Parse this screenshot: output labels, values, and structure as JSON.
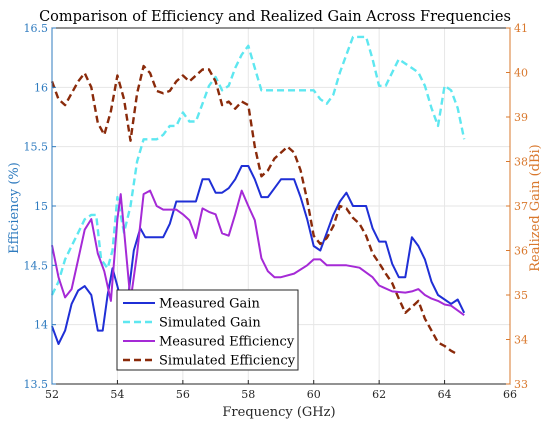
{
  "chart_data": {
    "type": "line",
    "title": "Comparison of Efficiency and Realized Gain Across Frequencies",
    "xlabel": "Frequency (GHz)",
    "ylabel_left": "Efficiency (%)",
    "ylabel_right": "Realized Gain (dBi)",
    "xlim": [
      52,
      66
    ],
    "ylim_left": [
      13.5,
      16.5
    ],
    "ylim_right": [
      33,
      41
    ],
    "xticks": [
      "52",
      "54",
      "56",
      "58",
      "60",
      "62",
      "64",
      "66"
    ],
    "yticks_left": [
      "13.5",
      "14",
      "14.5",
      "15",
      "15.5",
      "16",
      "16.5"
    ],
    "yticks_right": [
      "33",
      "34",
      "35",
      "36",
      "37",
      "38",
      "39",
      "40",
      "41"
    ],
    "grid": true,
    "legend_position": "lower-left",
    "colors": {
      "left_axis": "#2f7bbf",
      "right_axis": "#d9782d",
      "measured_gain": "#1f2fd6",
      "simulated_gain": "#5ee7f0",
      "measured_efficiency": "#a52ad6",
      "simulated_efficiency": "#8a2a0a",
      "grid": "#e6e6e6"
    },
    "series": [
      {
        "name": "Measured Gain",
        "axis": "right",
        "style": "solid",
        "x": [
          52.0,
          52.2,
          52.4,
          52.6,
          52.8,
          53.0,
          53.2,
          53.4,
          53.55,
          53.7,
          53.85,
          54.0,
          54.2,
          54.35,
          54.5,
          54.7,
          54.85,
          55.0,
          55.2,
          55.4,
          55.6,
          55.8,
          56.0,
          56.2,
          56.4,
          56.6,
          56.8,
          57.0,
          57.2,
          57.4,
          57.6,
          57.8,
          58.0,
          58.2,
          58.4,
          58.6,
          58.8,
          59.0,
          59.2,
          59.4,
          59.6,
          59.8,
          60.0,
          60.2,
          60.4,
          60.6,
          60.8,
          61.0,
          61.2,
          61.4,
          61.6,
          61.8,
          62.0,
          62.2,
          62.4,
          62.6,
          62.8,
          63.0,
          63.2,
          63.4,
          63.6,
          63.8,
          64.0,
          64.2,
          64.4,
          64.6
        ],
        "values": [
          34.3,
          33.9,
          34.2,
          34.8,
          35.1,
          35.2,
          35.0,
          34.2,
          34.2,
          35.0,
          35.6,
          35.2,
          34.6,
          35.1,
          36.0,
          36.5,
          36.3,
          36.3,
          36.3,
          36.3,
          36.6,
          37.1,
          37.1,
          37.1,
          37.1,
          37.6,
          37.6,
          37.3,
          37.3,
          37.4,
          37.6,
          37.9,
          37.9,
          37.6,
          37.2,
          37.2,
          37.4,
          37.6,
          37.6,
          37.6,
          37.2,
          36.7,
          36.1,
          36.0,
          36.4,
          36.8,
          37.1,
          37.3,
          37.0,
          37.0,
          37.0,
          36.5,
          36.2,
          36.2,
          35.7,
          35.4,
          35.4,
          36.3,
          36.1,
          35.8,
          35.3,
          35.0,
          34.9,
          34.8,
          34.9,
          34.6
        ]
      },
      {
        "name": "Simulated Gain",
        "axis": "right",
        "style": "dashed",
        "x": [
          52.0,
          52.2,
          52.4,
          52.6,
          52.8,
          53.0,
          53.2,
          53.35,
          53.5,
          53.7,
          53.85,
          54.0,
          54.2,
          54.4,
          54.6,
          54.8,
          55.0,
          55.2,
          55.4,
          55.6,
          55.8,
          56.0,
          56.2,
          56.4,
          56.6,
          56.8,
          57.0,
          57.2,
          57.4,
          57.6,
          57.8,
          58.0,
          58.2,
          58.4,
          58.8,
          59.2,
          59.6,
          60.0,
          60.2,
          60.4,
          60.6,
          60.8,
          61.0,
          61.2,
          61.4,
          61.6,
          61.8,
          62.0,
          62.2,
          62.4,
          62.6,
          62.8,
          63.0,
          63.2,
          63.4,
          63.6,
          63.8,
          64.0,
          64.2,
          64.4,
          64.6
        ],
        "values": [
          35.0,
          35.3,
          35.8,
          36.1,
          36.4,
          36.7,
          36.8,
          36.8,
          35.8,
          35.6,
          36.0,
          37.2,
          36.4,
          37.0,
          38.0,
          38.5,
          38.5,
          38.5,
          38.6,
          38.8,
          38.8,
          39.1,
          38.9,
          38.9,
          39.3,
          39.7,
          39.9,
          39.6,
          39.7,
          40.1,
          40.4,
          40.6,
          40.1,
          39.6,
          39.6,
          39.6,
          39.6,
          39.6,
          39.4,
          39.3,
          39.5,
          40.0,
          40.4,
          40.8,
          40.8,
          40.8,
          40.3,
          39.7,
          39.7,
          40.0,
          40.3,
          40.2,
          40.1,
          40.0,
          39.7,
          39.2,
          38.8,
          39.7,
          39.6,
          39.2,
          38.5
        ]
      },
      {
        "name": "Measured Efficiency",
        "axis": "left",
        "style": "solid",
        "x": [
          52.0,
          52.2,
          52.4,
          52.6,
          52.8,
          53.0,
          53.2,
          53.4,
          53.6,
          53.8,
          54.0,
          54.1,
          54.2,
          54.4,
          54.6,
          54.8,
          55.0,
          55.2,
          55.4,
          55.6,
          55.8,
          56.0,
          56.2,
          56.4,
          56.6,
          56.8,
          57.0,
          57.2,
          57.4,
          57.6,
          57.8,
          58.0,
          58.2,
          58.4,
          58.6,
          58.8,
          59.0,
          59.4,
          59.8,
          60.0,
          60.2,
          60.4,
          60.6,
          60.8,
          61.0,
          61.4,
          61.8,
          62.0,
          62.4,
          62.8,
          63.0,
          63.2,
          63.4,
          63.6,
          63.8,
          64.0,
          64.2,
          64.4,
          64.6
        ],
        "values": [
          14.67,
          14.4,
          14.23,
          14.3,
          14.55,
          14.8,
          14.89,
          14.6,
          14.45,
          14.2,
          14.89,
          15.1,
          14.8,
          14.2,
          14.6,
          15.1,
          15.13,
          15.0,
          14.97,
          14.97,
          14.97,
          14.93,
          14.88,
          14.73,
          14.98,
          14.95,
          14.93,
          14.77,
          14.75,
          14.93,
          15.13,
          15.0,
          14.88,
          14.56,
          14.45,
          14.4,
          14.4,
          14.43,
          14.5,
          14.55,
          14.55,
          14.5,
          14.5,
          14.5,
          14.5,
          14.48,
          14.4,
          14.33,
          14.28,
          14.27,
          14.28,
          14.3,
          14.25,
          14.22,
          14.2,
          14.17,
          14.16,
          14.12,
          14.08
        ]
      },
      {
        "name": "Simulated Efficiency",
        "axis": "left",
        "style": "dashed",
        "x": [
          52.0,
          52.2,
          52.4,
          52.6,
          52.8,
          53.0,
          53.2,
          53.4,
          53.6,
          53.8,
          54.0,
          54.2,
          54.4,
          54.6,
          54.8,
          55.0,
          55.2,
          55.4,
          55.6,
          55.8,
          56.0,
          56.2,
          56.4,
          56.6,
          56.8,
          57.0,
          57.2,
          57.4,
          57.6,
          57.8,
          58.0,
          58.2,
          58.4,
          58.6,
          58.8,
          59.0,
          59.2,
          59.4,
          59.6,
          59.8,
          60.0,
          60.2,
          60.4,
          60.6,
          60.8,
          61.0,
          61.2,
          61.4,
          61.6,
          61.8,
          62.0,
          62.2,
          62.4,
          62.6,
          62.8,
          63.0,
          63.2,
          63.4,
          63.6,
          63.8,
          64.0,
          64.2,
          64.4
        ],
        "values": [
          16.05,
          15.9,
          15.85,
          15.95,
          16.05,
          16.12,
          16.0,
          15.7,
          15.6,
          15.8,
          16.1,
          15.9,
          15.55,
          15.95,
          16.18,
          16.12,
          15.97,
          15.95,
          15.97,
          16.05,
          16.1,
          16.05,
          16.1,
          16.15,
          16.15,
          16.05,
          15.85,
          15.88,
          15.82,
          15.88,
          15.85,
          15.5,
          15.25,
          15.3,
          15.4,
          15.45,
          15.5,
          15.45,
          15.3,
          15.05,
          14.75,
          14.68,
          14.73,
          14.83,
          15.0,
          14.98,
          14.9,
          14.85,
          14.75,
          14.6,
          14.52,
          14.43,
          14.35,
          14.22,
          14.1,
          14.15,
          14.2,
          14.05,
          13.95,
          13.85,
          13.82,
          13.78,
          13.75
        ]
      }
    ]
  }
}
